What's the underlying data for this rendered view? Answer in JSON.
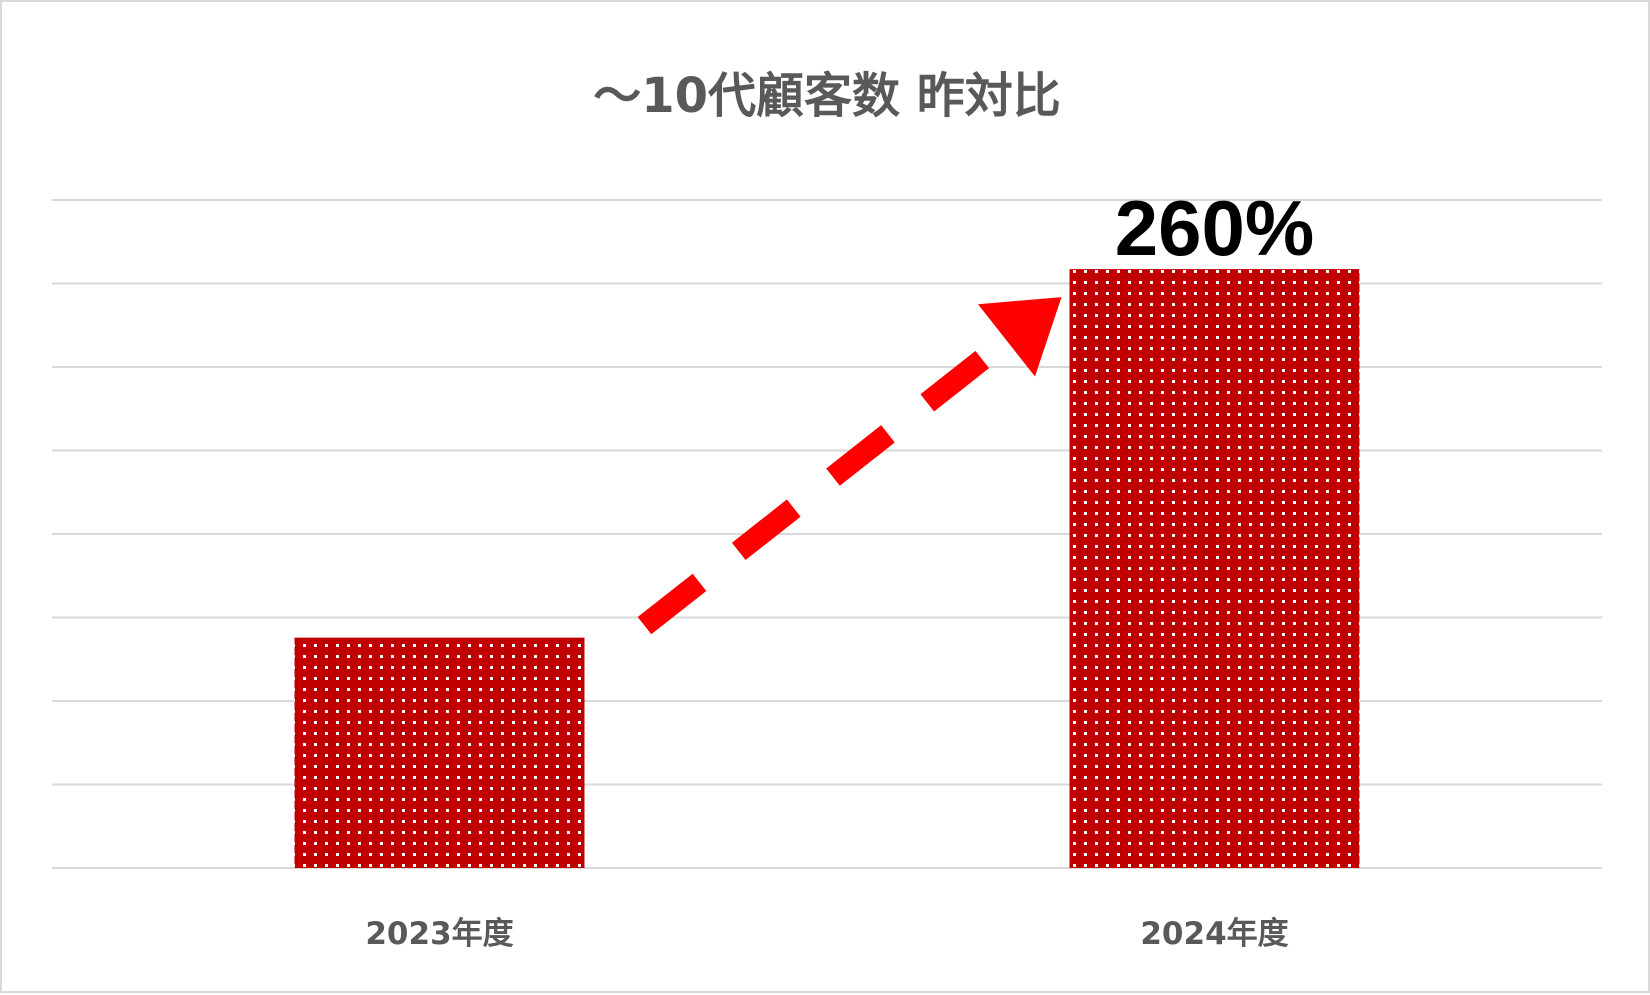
{
  "chart_data": {
    "type": "bar",
    "title": "～10代顧客数 昨対比",
    "categories": [
      "2023年度",
      "2024年度"
    ],
    "values": [
      100,
      260
    ],
    "ylim": [
      0,
      290
    ],
    "grid": true,
    "gridline_count": 9,
    "legend": "none",
    "bar_color": "#c00000",
    "bar_pattern": "white-dots",
    "arrow_color": "#ff0000",
    "annotation": {
      "text": "260%",
      "target_category": "2024年度"
    }
  }
}
